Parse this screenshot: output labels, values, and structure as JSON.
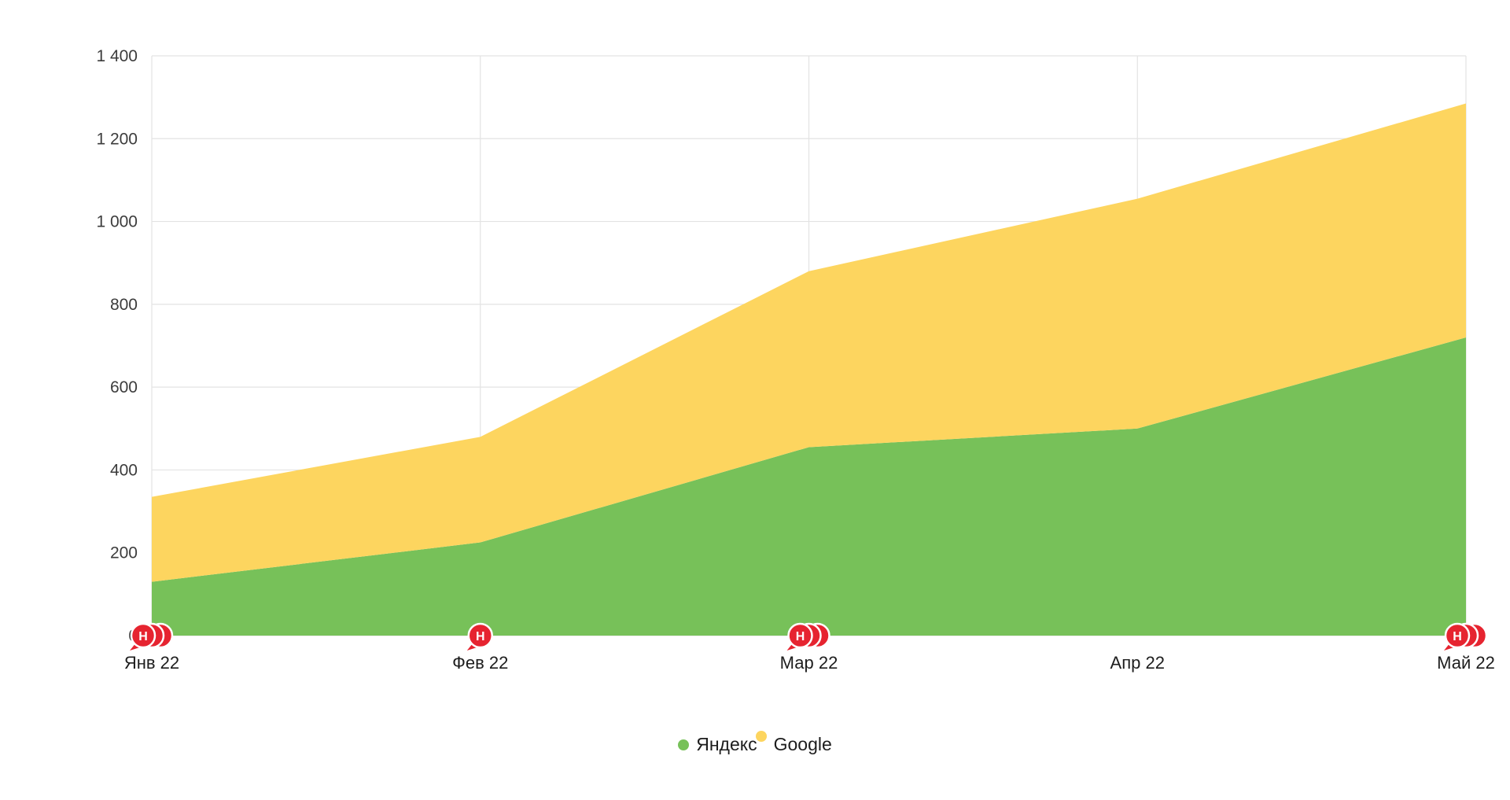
{
  "chart_data": {
    "type": "area",
    "stacked": true,
    "title": "",
    "xlabel": "",
    "ylabel": "",
    "categories": [
      "Янв 22",
      "Фев 22",
      "Мар 22",
      "Апр 22",
      "Май 22"
    ],
    "series": [
      {
        "name": "Яндекс",
        "color": "#77c159",
        "values": [
          130,
          225,
          455,
          500,
          720
        ]
      },
      {
        "name": "Google",
        "color": "#fdd55f",
        "values": [
          205,
          255,
          425,
          555,
          565
        ]
      }
    ],
    "stacked_totals": [
      335,
      480,
      880,
      1055,
      1285
    ],
    "ylim": [
      0,
      1400
    ],
    "ytick_step": 200,
    "ytick_labels": [
      "0",
      "200",
      "400",
      "600",
      "800",
      "1 000",
      "1 200",
      "1 400"
    ],
    "grid": true,
    "legend_position": "bottom",
    "legend": [
      {
        "label": "Яндекс",
        "color": "#77c159"
      },
      {
        "label": "Google",
        "color": "#fdd55f"
      }
    ],
    "markers": {
      "color": "#e62430",
      "glyph": "Н",
      "items": [
        {
          "category": "Янв 22",
          "count": 3
        },
        {
          "category": "Фев 22",
          "count": 1
        },
        {
          "category": "Мар 22",
          "count": 3
        },
        {
          "category": "Май 22",
          "count": 3
        }
      ]
    }
  }
}
